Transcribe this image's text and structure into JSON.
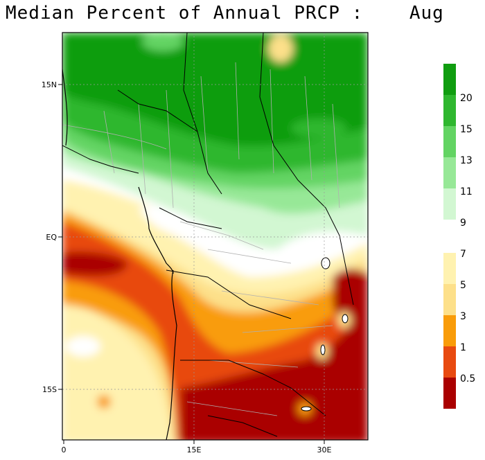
{
  "title": "Median Percent of Annual PRCP :    Aug",
  "map": {
    "lat_labels": [
      "15N",
      "EQ",
      "15S"
    ],
    "lon_labels": [
      "0",
      "15E",
      "30E"
    ]
  },
  "legend": {
    "levels": [
      "20",
      "15",
      "13",
      "11",
      "9",
      "7",
      "5",
      "3",
      "1",
      "0.5"
    ],
    "colors": {
      "g20plus": "#109d10",
      "g15_20": "#2fb72f",
      "g13_15": "#63d463",
      "g11_13": "#97e897",
      "g9_11": "#d2f7d2",
      "w7_9": "#ffffff",
      "y5_7": "#fff2b0",
      "y3_5": "#fde08a",
      "o1_3": "#f99c09",
      "r05_1": "#e84a10",
      "dr_lt05": "#aa0000"
    }
  }
}
